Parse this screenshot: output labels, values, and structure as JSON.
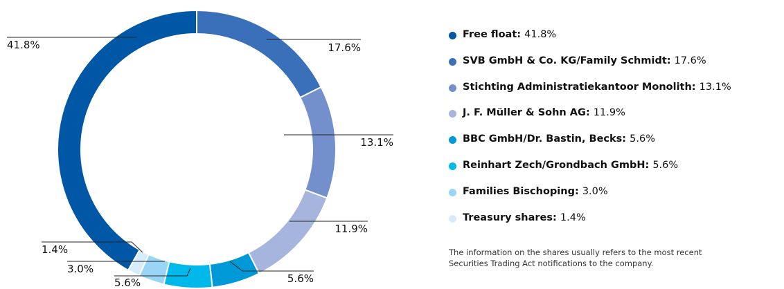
{
  "chart_data": {
    "type": "donut",
    "categories": [
      "Free float",
      "SVB GmbH & Co. KG/Family Schmidt",
      "Stichting Administratiekantoor Monolith",
      "J. F. Müller & Sohn AG",
      "BBC GmbH/Dr. Bastin, Becks",
      "Reinhart Zech/Grondbach GmbH",
      "Families Bischoping",
      "Treasury shares"
    ],
    "values": [
      41.8,
      17.6,
      13.1,
      11.9,
      5.6,
      5.6,
      3.0,
      1.4
    ],
    "value_labels": [
      "41.8%",
      "17.6%",
      "13.1%",
      "11.9%",
      "5.6%",
      "5.6%",
      "3.0%",
      "1.4%"
    ],
    "colors": [
      "#0057a6",
      "#3a6fba",
      "#7390cc",
      "#a6b5de",
      "#0099d8",
      "#00b8ea",
      "#99d6f5",
      "#d6ecfa"
    ],
    "note": [
      "The information on the shares usually refers to the most recent",
      "Securities Trading Act notifications to the company."
    ]
  }
}
